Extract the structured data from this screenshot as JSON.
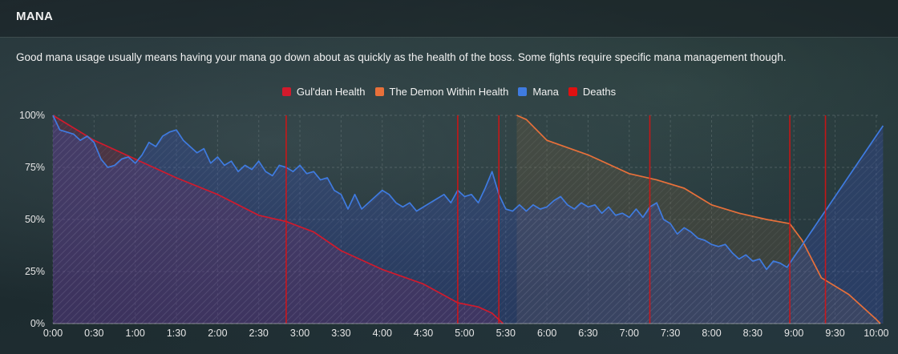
{
  "header": {
    "title": "MANA"
  },
  "description": "Good mana usage usually means having your mana go down about as quickly as the health of the boss. Some fights require specific mana management though.",
  "chart_data": {
    "type": "line",
    "title": "",
    "xlabel": "",
    "ylabel": "",
    "x_unit": "fight time (m:ss)",
    "xlim": [
      "0:00",
      "10:03"
    ],
    "ylim": [
      0,
      100
    ],
    "grid": true,
    "legend_position": "top-center",
    "x_tick_labels": [
      "0:00",
      "0:30",
      "1:00",
      "1:30",
      "2:00",
      "2:30",
      "3:00",
      "3:30",
      "4:00",
      "4:30",
      "5:00",
      "5:30",
      "6:00",
      "6:30",
      "7:00",
      "7:30",
      "8:00",
      "8:30",
      "9:00",
      "9:30",
      "10:00"
    ],
    "y_tick_labels": [
      "100%",
      "75%",
      "50%",
      "25%",
      "0%"
    ],
    "y_tick_values": [
      100,
      75,
      50,
      25,
      0
    ],
    "series": [
      {
        "name": "Gul'dan Health",
        "color": "#d21a2c",
        "fill": "rgba(150,30,70,0.28)",
        "points": [
          [
            "0:00",
            100
          ],
          [
            "0:30",
            88
          ],
          [
            "1:00",
            79
          ],
          [
            "1:30",
            70
          ],
          [
            "2:00",
            62
          ],
          [
            "2:30",
            52
          ],
          [
            "2:50",
            49
          ],
          [
            "3:10",
            44
          ],
          [
            "3:30",
            35
          ],
          [
            "4:00",
            26
          ],
          [
            "4:30",
            19
          ],
          [
            "4:55",
            10
          ],
          [
            "5:10",
            8
          ],
          [
            "5:20",
            5
          ],
          [
            "5:28",
            0
          ]
        ]
      },
      {
        "name": "The Demon Within Health",
        "color": "#e8703a",
        "fill": "rgba(120,95,60,0.28)",
        "points": [
          [
            "5:38",
            100
          ],
          [
            "5:45",
            98
          ],
          [
            "6:00",
            88
          ],
          [
            "6:30",
            81
          ],
          [
            "6:50",
            75
          ],
          [
            "7:00",
            72
          ],
          [
            "7:20",
            69
          ],
          [
            "7:40",
            65
          ],
          [
            "8:00",
            57
          ],
          [
            "8:20",
            53
          ],
          [
            "8:40",
            50
          ],
          [
            "8:57",
            48
          ],
          [
            "9:06",
            40
          ],
          [
            "9:20",
            22
          ],
          [
            "9:40",
            14
          ],
          [
            "10:00",
            2
          ],
          [
            "10:03",
            0
          ]
        ]
      },
      {
        "name": "Mana",
        "color": "#3f7be0",
        "fill": "rgba(55,80,190,0.30)",
        "points": [
          [
            "0:00",
            100
          ],
          [
            "0:05",
            93
          ],
          [
            "0:10",
            92
          ],
          [
            "0:15",
            91
          ],
          [
            "0:20",
            88
          ],
          [
            "0:25",
            90
          ],
          [
            "0:30",
            87
          ],
          [
            "0:35",
            79
          ],
          [
            "0:40",
            75
          ],
          [
            "0:45",
            76
          ],
          [
            "0:50",
            79
          ],
          [
            "0:55",
            80
          ],
          [
            "1:00",
            77
          ],
          [
            "1:05",
            81
          ],
          [
            "1:10",
            87
          ],
          [
            "1:15",
            85
          ],
          [
            "1:20",
            90
          ],
          [
            "1:25",
            92
          ],
          [
            "1:30",
            93
          ],
          [
            "1:35",
            88
          ],
          [
            "1:40",
            85
          ],
          [
            "1:45",
            82
          ],
          [
            "1:50",
            84
          ],
          [
            "1:55",
            77
          ],
          [
            "2:00",
            80
          ],
          [
            "2:05",
            76
          ],
          [
            "2:10",
            78
          ],
          [
            "2:15",
            73
          ],
          [
            "2:20",
            76
          ],
          [
            "2:25",
            74
          ],
          [
            "2:30",
            78
          ],
          [
            "2:35",
            73
          ],
          [
            "2:40",
            71
          ],
          [
            "2:45",
            76
          ],
          [
            "2:50",
            75
          ],
          [
            "2:55",
            73
          ],
          [
            "3:00",
            76
          ],
          [
            "3:05",
            72
          ],
          [
            "3:10",
            73
          ],
          [
            "3:15",
            69
          ],
          [
            "3:20",
            70
          ],
          [
            "3:25",
            64
          ],
          [
            "3:30",
            62
          ],
          [
            "3:35",
            55
          ],
          [
            "3:40",
            62
          ],
          [
            "3:45",
            55
          ],
          [
            "3:50",
            58
          ],
          [
            "3:55",
            61
          ],
          [
            "4:00",
            64
          ],
          [
            "4:05",
            62
          ],
          [
            "4:10",
            58
          ],
          [
            "4:15",
            56
          ],
          [
            "4:20",
            58
          ],
          [
            "4:25",
            54
          ],
          [
            "4:30",
            56
          ],
          [
            "4:35",
            58
          ],
          [
            "4:40",
            60
          ],
          [
            "4:45",
            62
          ],
          [
            "4:50",
            58
          ],
          [
            "4:55",
            64
          ],
          [
            "5:00",
            61
          ],
          [
            "5:05",
            62
          ],
          [
            "5:10",
            58
          ],
          [
            "5:15",
            65
          ],
          [
            "5:20",
            73
          ],
          [
            "5:25",
            62
          ],
          [
            "5:30",
            55
          ],
          [
            "5:35",
            54
          ],
          [
            "5:40",
            57
          ],
          [
            "5:45",
            54
          ],
          [
            "5:50",
            57
          ],
          [
            "5:55",
            55
          ],
          [
            "6:00",
            56
          ],
          [
            "6:05",
            59
          ],
          [
            "6:10",
            61
          ],
          [
            "6:15",
            57
          ],
          [
            "6:20",
            55
          ],
          [
            "6:25",
            58
          ],
          [
            "6:30",
            56
          ],
          [
            "6:35",
            57
          ],
          [
            "6:40",
            53
          ],
          [
            "6:45",
            56
          ],
          [
            "6:50",
            52
          ],
          [
            "6:55",
            53
          ],
          [
            "7:00",
            51
          ],
          [
            "7:05",
            55
          ],
          [
            "7:10",
            51
          ],
          [
            "7:15",
            56
          ],
          [
            "7:20",
            58
          ],
          [
            "7:25",
            50
          ],
          [
            "7:30",
            48
          ],
          [
            "7:35",
            43
          ],
          [
            "7:40",
            46
          ],
          [
            "7:45",
            44
          ],
          [
            "7:50",
            41
          ],
          [
            "7:55",
            40
          ],
          [
            "8:00",
            38
          ],
          [
            "8:05",
            37
          ],
          [
            "8:10",
            38
          ],
          [
            "8:15",
            34
          ],
          [
            "8:20",
            31
          ],
          [
            "8:25",
            33
          ],
          [
            "8:30",
            30
          ],
          [
            "8:35",
            31
          ],
          [
            "8:40",
            26
          ],
          [
            "8:45",
            30
          ],
          [
            "8:50",
            29
          ],
          [
            "8:55",
            27
          ],
          [
            "10:05",
            95
          ]
        ]
      }
    ],
    "deaths": {
      "name": "Deaths",
      "color": "#e01010",
      "times": [
        "2:50",
        "4:55",
        "5:25",
        "7:15",
        "8:57",
        "9:23"
      ]
    }
  }
}
